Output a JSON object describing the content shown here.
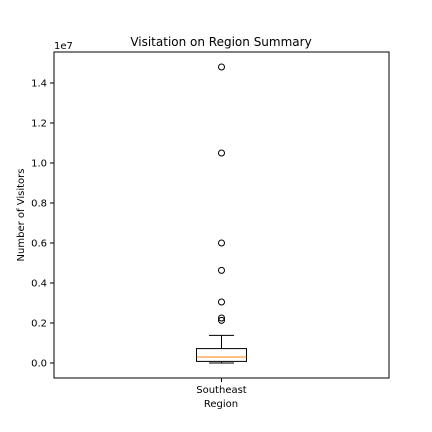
{
  "chart_data": {
    "type": "box",
    "title": "Visitation on Region Summary",
    "xlabel": "Region",
    "ylabel": "Number of Visitors",
    "y_offset_label": "1e7",
    "ylim": [
      -0.075,
      1.555
    ],
    "y_scale_multiplier": 10000000,
    "y_ticks": [
      0.0,
      0.2,
      0.4,
      0.6,
      0.8,
      1.0,
      1.2,
      1.4
    ],
    "y_tick_labels": [
      "0.0",
      "0.2",
      "0.4",
      "0.6",
      "0.8",
      "1.0",
      "1.2",
      "1.4"
    ],
    "categories": [
      "Southeast"
    ],
    "boxes": [
      {
        "category": "Southeast",
        "whisker_low": 0.0,
        "q1": 0.008,
        "median": 0.03,
        "q3": 0.072,
        "whisker_high": 0.138,
        "outliers": [
          0.213,
          0.225,
          0.305,
          0.463,
          0.6,
          1.05,
          1.48
        ]
      }
    ],
    "grid": false,
    "colors": {
      "median": "#ff7f0e",
      "box_edge": "#000000",
      "axes": "#000000"
    }
  }
}
